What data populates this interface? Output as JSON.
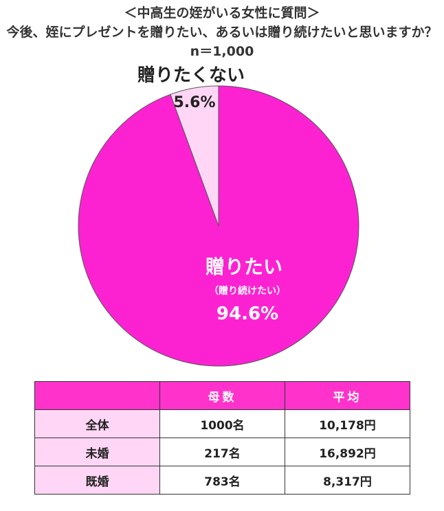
{
  "title_lines": [
    "＜中高生の姪がいる女性に質問＞",
    "今後、姪にプレゼントを贈りたい、あるいは贈り続けたいと思いますか？",
    "n＝1,000"
  ],
  "chart_data": {
    "type": "pie",
    "title": "今後、姪にプレゼントを贈りたい、あるいは贈り続けたいと思いますか？",
    "n": "n＝1,000",
    "slices": [
      {
        "label": "贈りたくない",
        "value": 5.6,
        "value_label": "5.6%",
        "color": "#ffd6f5"
      },
      {
        "label": "贈りたい",
        "sublabel": "（贈り続けたい）",
        "value": 94.6,
        "value_label": "94.6%",
        "color": "#fc22d2"
      }
    ]
  },
  "table": {
    "headers": [
      "",
      "母数",
      "平均"
    ],
    "rows": [
      {
        "label": "全体",
        "count": "1000名",
        "average": "10,178円"
      },
      {
        "label": "未婚",
        "count": "217名",
        "average": "16,892円"
      },
      {
        "label": "既婚",
        "count": "783名",
        "average": "8,317円"
      }
    ]
  },
  "colors": {
    "accent": "#ff33cc",
    "row_header_bg": "#ffd6f5",
    "slice_main": "#fc22d2",
    "slice_minor": "#ffd6f5"
  }
}
